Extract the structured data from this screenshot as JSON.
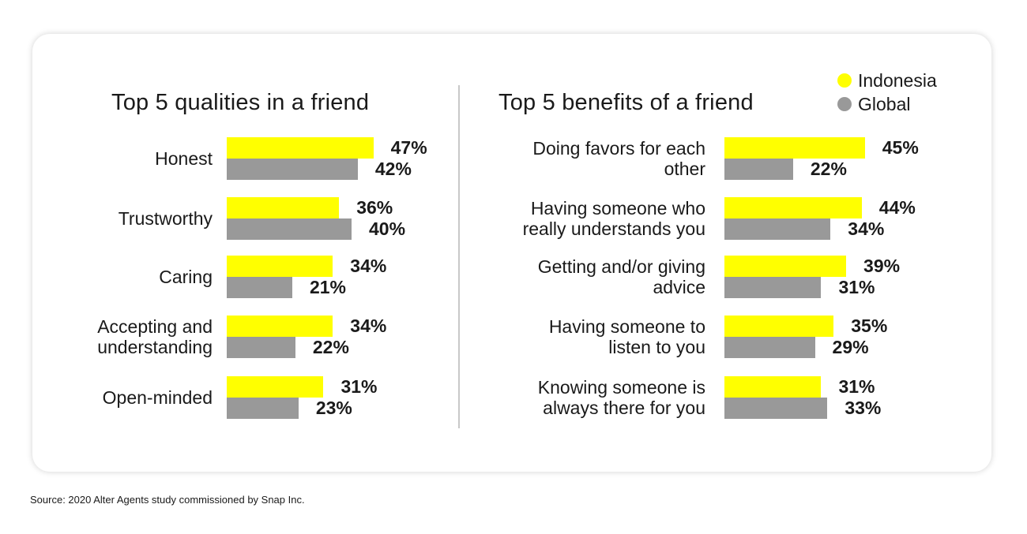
{
  "colors": {
    "indonesia": "#ffff00",
    "global": "#999999"
  },
  "legend": [
    {
      "label": "Indonesia",
      "color": "#ffff00"
    },
    {
      "label": "Global",
      "color": "#999999"
    }
  ],
  "source": "Source: 2020 Alter Agents study commissioned by Snap Inc.",
  "chart_data": [
    {
      "type": "bar",
      "orientation": "horizontal",
      "title": "Top 5 qualities in a friend",
      "categories": [
        [
          "Honest"
        ],
        [
          "Trustworthy"
        ],
        [
          "Caring"
        ],
        [
          "Accepting and",
          "understanding"
        ],
        [
          "Open-minded"
        ]
      ],
      "series": [
        {
          "name": "Indonesia",
          "values": [
            47,
            36,
            34,
            34,
            31
          ],
          "labels": [
            "47%",
            "36%",
            "34%",
            "34%",
            "31%"
          ]
        },
        {
          "name": "Global",
          "values": [
            42,
            40,
            21,
            22,
            23
          ],
          "labels": [
            "42%",
            "40%",
            "21%",
            "22%",
            "23%"
          ]
        }
      ],
      "unit": "%",
      "legend": "top-right"
    },
    {
      "type": "bar",
      "orientation": "horizontal",
      "title": "Top 5 benefits of a friend",
      "categories": [
        [
          "Doing favors for each",
          "other"
        ],
        [
          "Having someone who",
          "really understands you"
        ],
        [
          "Getting and/or giving",
          "advice"
        ],
        [
          "Having someone to",
          "listen to you"
        ],
        [
          "Knowing someone is",
          "always there for you"
        ]
      ],
      "series": [
        {
          "name": "Indonesia",
          "values": [
            45,
            44,
            39,
            35,
            31
          ],
          "labels": [
            "45%",
            "44%",
            "39%",
            "35%",
            "31%"
          ]
        },
        {
          "name": "Global",
          "values": [
            22,
            34,
            31,
            29,
            33
          ],
          "labels": [
            "22%",
            "34%",
            "31%",
            "29%",
            "33%"
          ]
        }
      ],
      "unit": "%",
      "legend": "top-right"
    }
  ]
}
